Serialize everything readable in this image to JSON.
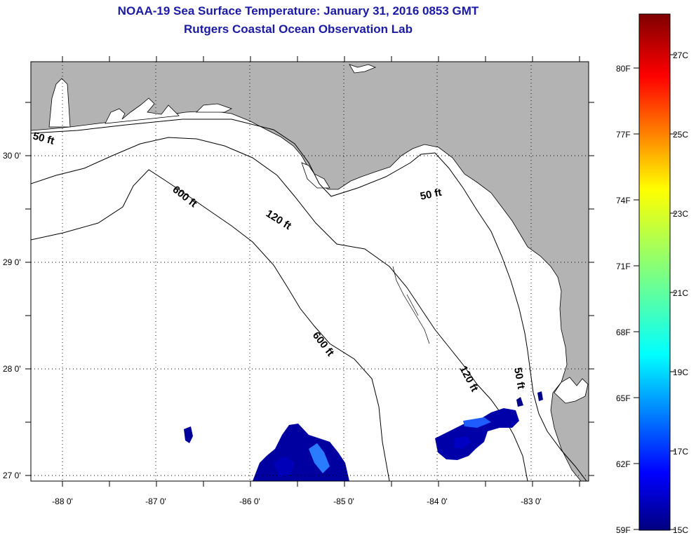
{
  "title": {
    "line1": "NOAA-19 Sea Surface Temperature:  January 31, 2016 0853 GMT",
    "line2": "Rutgers Coastal Ocean Observation Lab"
  },
  "map": {
    "lat_labels": [
      "30 0'",
      "29 0'",
      "28 0'",
      "27 0'"
    ],
    "lon_labels": [
      "-88 0'",
      "-87 0'",
      "-86 0'",
      "-85 0'",
      "-84 0'",
      "-83 0'"
    ],
    "isobath_labels": [
      "50 ft",
      "50 ft",
      "50 ft",
      "120 ft",
      "120 ft",
      "600 ft",
      "600 ft"
    ],
    "land_color": "#b3b3b3",
    "water_color": "#ffffff"
  },
  "colorbar": {
    "f_labels": [
      "80F",
      "77F",
      "74F",
      "71F",
      "68F",
      "65F",
      "62F",
      "59F"
    ],
    "c_labels": [
      "27C",
      "25C",
      "23C",
      "21C",
      "19C",
      "17C",
      "15C"
    ],
    "min_c": 15,
    "max_c": 28.3
  }
}
